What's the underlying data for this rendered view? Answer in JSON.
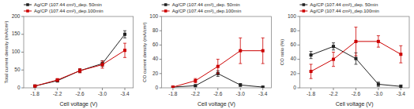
{
  "chart_data": [
    {
      "type": "line",
      "xlabel": "Cell voltage (V)",
      "ylabel": "Total current density (mA/cm²)",
      "x": [
        -1.8,
        -2.2,
        -2.6,
        -3.0,
        -3.4
      ],
      "series": [
        {
          "name": "Ag/CP (107.44 cm²)_dep. 50min",
          "color": "#222222",
          "marker": "square",
          "line_style": "solid",
          "values": [
            5,
            20,
            48,
            68,
            150
          ],
          "errors": [
            2,
            4,
            5,
            8,
            10
          ]
        },
        {
          "name": "Ag/CP (107.44 cm²)_dep.100min",
          "color": "#cc0000",
          "marker": "square",
          "line_style": "solid",
          "values": [
            5,
            22,
            48,
            65,
            105
          ],
          "errors": [
            2,
            4,
            6,
            10,
            20
          ]
        }
      ],
      "xlim": [
        -1.6,
        -3.55
      ],
      "xticks": [
        -1.8,
        -2.2,
        -2.6,
        {
          "value": -3.0,
          "label": "-3.0"
        },
        -3.4
      ],
      "ylim": [
        0,
        200
      ],
      "yticks": [
        0,
        50,
        100,
        150,
        200
      ],
      "grid": false,
      "legend": "upper left"
    },
    {
      "type": "line",
      "xlabel": "Cell voltage (V)",
      "ylabel": "CO current density (mA/cm²)",
      "x": [
        -1.8,
        -2.2,
        -2.6,
        -3.0,
        -3.4
      ],
      "series": [
        {
          "name": "Ag/CP (107.44 cm²)_dep. 50min",
          "color": "#222222",
          "marker": "square",
          "line_style": "solid",
          "values": [
            1,
            3,
            20,
            4,
            1
          ],
          "errors": [
            1,
            1,
            4,
            2,
            1
          ]
        },
        {
          "name": "Ag/CP (107.44 cm²)_dep.100min",
          "color": "#cc0000",
          "marker": "square",
          "line_style": "solid",
          "values": [
            1,
            10,
            30,
            52,
            52
          ],
          "errors": [
            1,
            3,
            10,
            18,
            18
          ]
        }
      ],
      "xlim": [
        -1.6,
        -3.55
      ],
      "xticks": [
        -1.8,
        -2.2,
        -2.6,
        {
          "value": -3.0,
          "label": "-3.0"
        },
        -3.4
      ],
      "ylim": [
        0,
        100
      ],
      "yticks": [
        0,
        20,
        40,
        60,
        80,
        100
      ],
      "grid": false,
      "legend": "upper left"
    },
    {
      "type": "line",
      "xlabel": "Cell voltage (V)",
      "ylabel": "CO ratio (%)",
      "x": [
        -1.8,
        -2.2,
        -2.6,
        -3.0,
        -3.4
      ],
      "series": [
        {
          "name": "Ag/CP (107.44 cm²)_dep. 50min",
          "color": "#222222",
          "marker": "square",
          "line_style": "solid",
          "values": [
            46,
            58,
            41,
            5,
            2
          ],
          "errors": [
            5,
            5,
            8,
            3,
            2
          ]
        },
        {
          "name": "Ag/CP (107.44 cm²)_dep.100min",
          "color": "#cc0000",
          "marker": "square",
          "line_style": "solid",
          "values": [
            23,
            40,
            65,
            65,
            47
          ],
          "errors": [
            10,
            10,
            20,
            8,
            12
          ]
        }
      ],
      "xlim": [
        -1.6,
        -3.55
      ],
      "xticks": [
        -1.8,
        -2.2,
        -2.6,
        {
          "value": -3.0,
          "label": "-3.0"
        },
        -3.4
      ],
      "ylim": [
        0,
        100
      ],
      "yticks": [
        0,
        20,
        40,
        60,
        80,
        100
      ],
      "grid": false,
      "legend": "upper left"
    }
  ]
}
